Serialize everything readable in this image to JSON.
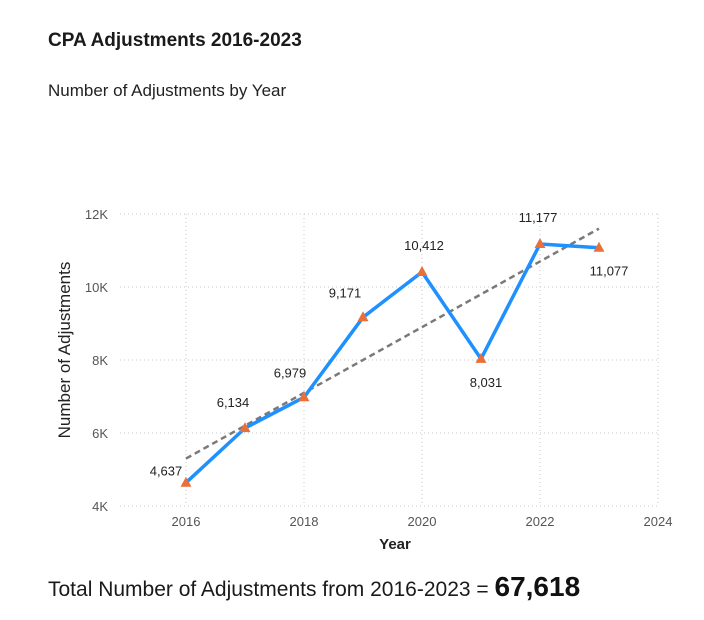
{
  "header": {
    "title": "CPA Adjustments 2016-2023",
    "subtitle": "Number of Adjustments by Year"
  },
  "footer": {
    "total_label": "Total Number of Adjustments from 2016-2023 = ",
    "total_value": "67,618"
  },
  "colors": {
    "line": "#1e90ff",
    "marker": "#e8703a",
    "trend": "#7a7a7a",
    "grid": "#c8c8c8"
  },
  "chart_data": {
    "type": "line",
    "xlabel": "Year",
    "ylabel": "Number of Adjustments",
    "xlim": [
      2015,
      2024
    ],
    "ylim": [
      4000,
      12000
    ],
    "x_ticks": [
      2016,
      2018,
      2020,
      2022,
      2024
    ],
    "y_ticks": [
      4000,
      6000,
      8000,
      10000,
      12000
    ],
    "x_tick_labels": [
      "2016",
      "2018",
      "2020",
      "2022",
      "2024"
    ],
    "y_tick_labels": [
      "4K",
      "6K",
      "8K",
      "10K",
      "12K"
    ],
    "grid": true,
    "series": [
      {
        "x": [
          2016,
          2017,
          2018,
          2019,
          2020,
          2021,
          2022,
          2023
        ],
        "values": [
          4637,
          6134,
          6979,
          9171,
          10412,
          8031,
          11177,
          11077
        ],
        "labels": [
          "4,637",
          "6,134",
          "6,979",
          "9,171",
          "10,412",
          "8,031",
          "11,177",
          "11,077"
        ],
        "marker": "triangle"
      }
    ],
    "trendline": {
      "x": [
        2016,
        2023
      ],
      "values": [
        5300,
        11600
      ],
      "style": "dashed"
    }
  }
}
